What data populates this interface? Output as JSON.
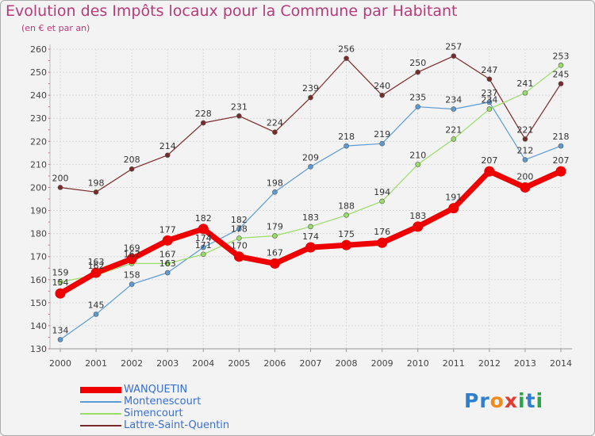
{
  "chart_data": {
    "type": "line",
    "title": "Evolution des Impôts locaux pour la Commune par Habitant",
    "subtitle": "(en € et par an)",
    "x": [
      "2000",
      "2001",
      "2002",
      "2003",
      "2004",
      "2005",
      "2006",
      "2007",
      "2008",
      "2009",
      "2010",
      "2011",
      "2012",
      "2013",
      "2014"
    ],
    "ylim": [
      130,
      260
    ],
    "yticks": [
      130,
      140,
      150,
      160,
      170,
      180,
      190,
      200,
      210,
      220,
      230,
      240,
      250,
      260
    ],
    "grid": true,
    "legend_position": "bottom-left",
    "series": [
      {
        "name": "Lattre-Saint-Quentin",
        "color": "#7a2a2a",
        "values": [
          200,
          198,
          208,
          214,
          228,
          231,
          224,
          239,
          256,
          240,
          250,
          257,
          247,
          221,
          245
        ]
      },
      {
        "name": "Montenescourt",
        "color": "#5b9bd5",
        "values": [
          134,
          145,
          158,
          163,
          174,
          182,
          198,
          209,
          218,
          219,
          235,
          234,
          237,
          212,
          218
        ]
      },
      {
        "name": "Simencourt",
        "color": "#99dd66",
        "values": [
          159,
          162,
          167,
          167,
          171,
          178,
          179,
          183,
          188,
          194,
          210,
          221,
          234,
          241,
          253
        ]
      },
      {
        "name": "WANQUETIN",
        "color": "#ee0000",
        "values": [
          154,
          163,
          169,
          177,
          182,
          170,
          167,
          174,
          175,
          176,
          183,
          191,
          207,
          200,
          207
        ]
      }
    ]
  },
  "legend": [
    {
      "name": "WANQUETIN",
      "color": "#ee0000",
      "text_color": "#3a6fd0"
    },
    {
      "name": "Montenescourt",
      "color": "#5b9bd5",
      "text_color": "#3a6fd0"
    },
    {
      "name": "Simencourt",
      "color": "#99dd66",
      "text_color": "#3a6fd0"
    },
    {
      "name": "Lattre-Saint-Quentin",
      "color": "#7a2a2a",
      "text_color": "#3a6fd0"
    }
  ],
  "logo": {
    "text": "Proxiti",
    "letter_colors": [
      "#2e7fd1",
      "#2e7fd1",
      "#f28a1b",
      "#e23a2e",
      "#2aa548",
      "#2e7fd1",
      "#2aa548"
    ]
  }
}
